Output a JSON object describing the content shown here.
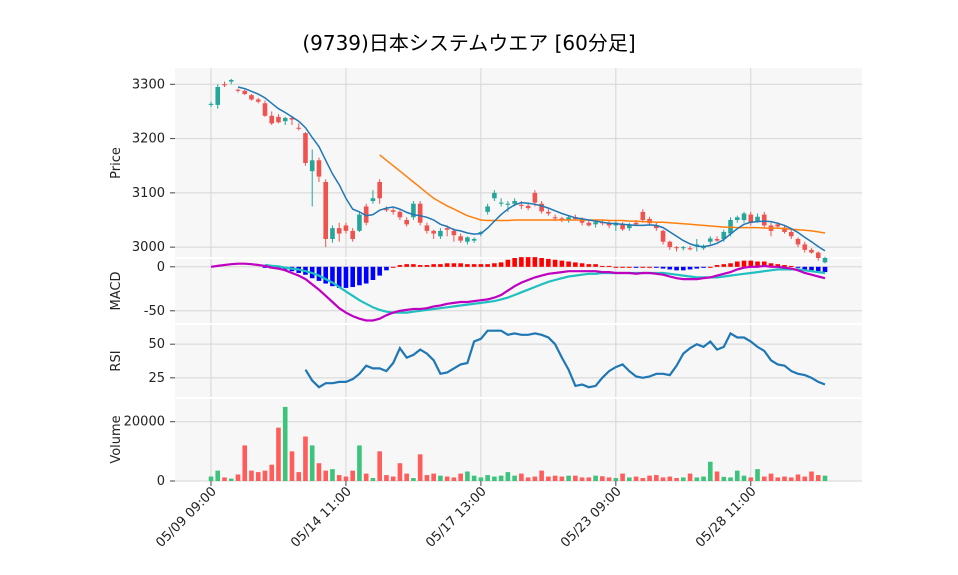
{
  "chart_data": {
    "type": "candlestick",
    "title": "(9739)日本システムウエア  [60分足]",
    "colors": {
      "up": "#26a69a",
      "down": "#ef5350",
      "ma_short": "#1f77b4",
      "ma_long": "#ff7f0e",
      "macd": "#c000c0",
      "signal": "#20c0c0",
      "hist_pos": "#ff0000",
      "hist_neg": "#0000ff",
      "rsi": "#1f77b4",
      "vol_up": "#3cc47c",
      "vol_down": "#ff5c5c"
    },
    "x_tick_labels": [
      "05/09 09:00",
      "05/14 11:00",
      "05/17 13:00",
      "05/23 09:00",
      "05/28 11:00"
    ],
    "x_tick_index": [
      0,
      20,
      40,
      60,
      80
    ],
    "panels": {
      "price": {
        "ylabel": "Price",
        "ylim": [
          2980,
          3330
        ],
        "ticks": [
          3000,
          3100,
          3200,
          3300
        ]
      },
      "macd": {
        "ylabel": "MACD",
        "ylim": [
          -65,
          10
        ],
        "ticks": [
          0,
          -50
        ]
      },
      "rsi": {
        "ylabel": "RSI",
        "ylim": [
          10,
          65
        ],
        "ticks": [
          25,
          50
        ]
      },
      "volume": {
        "ylabel": "Volume",
        "ylim": [
          0,
          28000
        ],
        "ticks": [
          0,
          20000
        ]
      }
    },
    "ohlc": [
      [
        3262,
        3268,
        3258,
        3264
      ],
      [
        3262,
        3300,
        3255,
        3295
      ],
      [
        3300,
        3305,
        3295,
        3298
      ],
      [
        3305,
        3310,
        3300,
        3308
      ],
      [
        3290,
        3292,
        3285,
        3288
      ],
      [
        3288,
        3290,
        3280,
        3282
      ],
      [
        3280,
        3282,
        3270,
        3272
      ],
      [
        3272,
        3275,
        3265,
        3268
      ],
      [
        3265,
        3270,
        3240,
        3242
      ],
      [
        3242,
        3250,
        3225,
        3228
      ],
      [
        3240,
        3245,
        3228,
        3230
      ],
      [
        3232,
        3240,
        3225,
        3238
      ],
      [
        3238,
        3242,
        3225,
        3235
      ],
      [
        3220,
        3228,
        3215,
        3218
      ],
      [
        3210,
        3212,
        3150,
        3155
      ],
      [
        3140,
        3180,
        3075,
        3160
      ],
      [
        3160,
        3165,
        3120,
        3130
      ],
      [
        3120,
        3125,
        3000,
        3015
      ],
      [
        3015,
        3040,
        3008,
        3035
      ],
      [
        3035,
        3045,
        3010,
        3025
      ],
      [
        3040,
        3045,
        3025,
        3030
      ],
      [
        3030,
        3035,
        3010,
        3015
      ],
      [
        3030,
        3065,
        3028,
        3060
      ],
      [
        3075,
        3080,
        3040,
        3045
      ],
      [
        3085,
        3105,
        3080,
        3090
      ],
      [
        3120,
        3125,
        3080,
        3090
      ],
      [
        3070,
        3075,
        3065,
        3068
      ],
      [
        3068,
        3072,
        3060,
        3065
      ],
      [
        3065,
        3068,
        3050,
        3055
      ],
      [
        3050,
        3055,
        3038,
        3042
      ],
      [
        3055,
        3085,
        3050,
        3080
      ],
      [
        3080,
        3085,
        3040,
        3045
      ],
      [
        3040,
        3045,
        3025,
        3030
      ],
      [
        3030,
        3032,
        3015,
        3025
      ],
      [
        3020,
        3035,
        3015,
        3030
      ],
      [
        3035,
        3040,
        3020,
        3032
      ],
      [
        3030,
        3035,
        3010,
        3022
      ],
      [
        3020,
        3025,
        3008,
        3012
      ],
      [
        3010,
        3020,
        3005,
        3018
      ],
      [
        3012,
        3018,
        3008,
        3015
      ],
      [
        3025,
        3030,
        3020,
        3028
      ],
      [
        3065,
        3080,
        3060,
        3075
      ],
      [
        3090,
        3105,
        3085,
        3100
      ],
      [
        3080,
        3090,
        3075,
        3082
      ],
      [
        3078,
        3085,
        3065,
        3080
      ],
      [
        3080,
        3090,
        3075,
        3085
      ],
      [
        3078,
        3085,
        3070,
        3076
      ],
      [
        3076,
        3080,
        3068,
        3072
      ],
      [
        3100,
        3105,
        3075,
        3082
      ],
      [
        3080,
        3085,
        3062,
        3066
      ],
      [
        3065,
        3070,
        3058,
        3062
      ],
      [
        3055,
        3060,
        3048,
        3053
      ],
      [
        3053,
        3056,
        3046,
        3050
      ],
      [
        3050,
        3058,
        3045,
        3055
      ],
      [
        3055,
        3060,
        3050,
        3052
      ],
      [
        3052,
        3055,
        3040,
        3045
      ],
      [
        3045,
        3050,
        3038,
        3040
      ],
      [
        3042,
        3048,
        3036,
        3046
      ],
      [
        3046,
        3050,
        3040,
        3044
      ],
      [
        3044,
        3048,
        3035,
        3040
      ],
      [
        3040,
        3048,
        3030,
        3045
      ],
      [
        3042,
        3046,
        3030,
        3033
      ],
      [
        3035,
        3045,
        3030,
        3041
      ],
      [
        3045,
        3050,
        3040,
        3042
      ],
      [
        3065,
        3070,
        3045,
        3050
      ],
      [
        3052,
        3056,
        3040,
        3044
      ],
      [
        3040,
        3045,
        3030,
        3035
      ],
      [
        3030,
        3032,
        3005,
        3010
      ],
      [
        3010,
        3012,
        2995,
        3000
      ],
      [
        3000,
        3002,
        2992,
        2998
      ],
      [
        2998,
        3002,
        2994,
        3000
      ],
      [
        2998,
        3002,
        2994,
        2996
      ],
      [
        3005,
        3015,
        2992,
        3005
      ],
      [
        2998,
        3005,
        2995,
        3002
      ],
      [
        3010,
        3020,
        3005,
        3016
      ],
      [
        3015,
        3020,
        3010,
        3012
      ],
      [
        3015,
        3032,
        3010,
        3028
      ],
      [
        3025,
        3055,
        3020,
        3050
      ],
      [
        3050,
        3058,
        3045,
        3055
      ],
      [
        3050,
        3065,
        3045,
        3062
      ],
      [
        3060,
        3065,
        3040,
        3045
      ],
      [
        3048,
        3062,
        3045,
        3056
      ],
      [
        3060,
        3065,
        3035,
        3040
      ],
      [
        3040,
        3045,
        3020,
        3030
      ],
      [
        3042,
        3046,
        3035,
        3038
      ],
      [
        3036,
        3040,
        3025,
        3028
      ],
      [
        3028,
        3032,
        3015,
        3020
      ],
      [
        3015,
        3018,
        3000,
        3005
      ],
      [
        3005,
        3010,
        2990,
        2995
      ],
      [
        2995,
        2998,
        2988,
        2990
      ],
      [
        2990,
        2992,
        2975,
        2980
      ],
      [
        2972,
        2982,
        2970,
        2980
      ]
    ],
    "ma_short": [
      null,
      null,
      null,
      null,
      3295,
      3292,
      3287,
      3282,
      3275,
      3265,
      3255,
      3248,
      3240,
      3232,
      3220,
      3202,
      3185,
      3160,
      3135,
      3115,
      3090,
      3070,
      3065,
      3058,
      3060,
      3068,
      3072,
      3074,
      3070,
      3064,
      3060,
      3058,
      3055,
      3050,
      3042,
      3038,
      3032,
      3030,
      3026,
      3024,
      3025,
      3035,
      3048,
      3060,
      3070,
      3078,
      3082,
      3081,
      3079,
      3076,
      3072,
      3067,
      3062,
      3058,
      3054,
      3052,
      3050,
      3048,
      3046,
      3044,
      3043,
      3042,
      3041,
      3040,
      3040,
      3041,
      3040,
      3036,
      3028,
      3020,
      3012,
      3006,
      3002,
      3001,
      3003,
      3007,
      3014,
      3024,
      3034,
      3042,
      3046,
      3047,
      3048,
      3047,
      3044,
      3040,
      3034,
      3027,
      3018,
      3010,
      3001,
      2993
    ],
    "ma_long": [
      null,
      null,
      null,
      null,
      null,
      null,
      null,
      null,
      null,
      null,
      null,
      null,
      null,
      null,
      null,
      null,
      null,
      null,
      null,
      null,
      null,
      null,
      null,
      null,
      null,
      3170,
      3160,
      3150,
      3140,
      3130,
      3120,
      3110,
      3100,
      3090,
      3083,
      3076,
      3070,
      3064,
      3058,
      3054,
      3050,
      3049,
      3049,
      3049,
      3049,
      3050,
      3050,
      3050,
      3050,
      3050,
      3050,
      3050,
      3050,
      3050,
      3050,
      3050,
      3050,
      3050,
      3050,
      3049,
      3049,
      3049,
      3048,
      3048,
      3047,
      3047,
      3046,
      3046,
      3045,
      3044,
      3043,
      3042,
      3041,
      3040,
      3039,
      3038,
      3037,
      3037,
      3036,
      3036,
      3036,
      3036,
      3035,
      3035,
      3035,
      3034,
      3033,
      3032,
      3031,
      3030,
      3028,
      3026
    ],
    "macd": [
      0,
      1,
      2,
      3,
      3.5,
      3.5,
      3,
      2,
      1,
      -1,
      -2,
      -4,
      -7,
      -10,
      -14,
      -20,
      -26,
      -33,
      -40,
      -47,
      -52,
      -56,
      -59,
      -61,
      -61,
      -59,
      -55,
      -52,
      -50,
      -49,
      -48,
      -48,
      -47,
      -45,
      -44,
      -42,
      -41,
      -40,
      -40,
      -39,
      -38,
      -37,
      -35,
      -32,
      -27,
      -22,
      -18,
      -15,
      -12,
      -10,
      -8,
      -7,
      -6,
      -5,
      -5,
      -5,
      -5,
      -5,
      -6,
      -6,
      -7,
      -7,
      -7,
      -8,
      -7,
      -7,
      -8,
      -9,
      -11,
      -13,
      -14,
      -14,
      -14,
      -13,
      -12,
      -10,
      -8,
      -6,
      -3,
      -1,
      0,
      0,
      1,
      0,
      0,
      -1,
      -2,
      -4,
      -7,
      -9,
      -11,
      -13
    ],
    "signal": [
      null,
      null,
      null,
      null,
      null,
      null,
      null,
      null,
      2,
      1,
      0.5,
      -1,
      -2,
      -3,
      -5,
      -7,
      -10,
      -14,
      -18,
      -23,
      -28,
      -33,
      -38,
      -42,
      -46,
      -49,
      -51,
      -52,
      -52,
      -52,
      -51,
      -50,
      -49,
      -48,
      -47,
      -46,
      -45,
      -44,
      -43,
      -42,
      -41,
      -40,
      -39,
      -37,
      -35,
      -32,
      -29,
      -26,
      -23,
      -20,
      -17,
      -15,
      -13,
      -11,
      -10,
      -9,
      -8,
      -8,
      -7,
      -7,
      -7,
      -7,
      -7,
      -7,
      -7,
      -7,
      -7,
      -7,
      -8,
      -9,
      -10,
      -11,
      -12,
      -12,
      -12,
      -12,
      -11,
      -10,
      -9,
      -8,
      -7,
      -6,
      -5,
      -4,
      -3,
      -3,
      -3,
      -3,
      -4,
      -5,
      -6,
      -7
    ],
    "rsi": [
      null,
      null,
      null,
      null,
      null,
      null,
      null,
      null,
      null,
      null,
      null,
      null,
      null,
      null,
      31,
      23,
      18,
      21,
      21,
      22,
      22,
      24,
      28,
      34,
      32,
      32,
      30,
      36,
      47,
      40,
      42,
      46,
      43,
      38,
      28,
      29,
      32,
      35,
      36,
      52,
      54,
      60,
      60,
      60,
      57,
      58,
      57,
      57,
      58,
      57,
      55,
      50,
      40,
      31,
      19,
      20,
      18,
      19,
      25,
      30,
      33,
      35,
      30,
      26,
      25,
      26,
      28,
      28,
      27,
      34,
      43,
      47,
      50,
      48,
      52,
      46,
      48,
      58,
      55,
      55,
      52,
      48,
      45,
      38,
      35,
      34,
      30,
      28,
      27,
      25,
      22,
      20
    ],
    "volume": [
      1500,
      3500,
      1200,
      800,
      2200,
      12000,
      3500,
      3000,
      3500,
      5500,
      18000,
      25000,
      10000,
      3000,
      15000,
      12000,
      6000,
      3500,
      4000,
      2000,
      1500,
      3500,
      12000,
      2500,
      1000,
      10000,
      2000,
      1500,
      6000,
      2500,
      1000,
      9000,
      2000,
      2500,
      1800,
      1500,
      1200,
      2500,
      3200,
      1800,
      1200,
      2000,
      1500,
      1800,
      3000,
      1800,
      2500,
      1200,
      1500,
      3500,
      1500,
      1800,
      1500,
      1800,
      1800,
      1200,
      1200,
      1800,
      1600,
      1200,
      1000,
      2500,
      1200,
      1500,
      1000,
      1800,
      2000,
      1200,
      1500,
      1000,
      1200,
      2500,
      1200,
      1500,
      6500,
      3200,
      1400,
      1200,
      3500,
      1800,
      1200,
      4000,
      1500,
      2500,
      1200,
      1500,
      1200,
      2200,
      1500,
      3200,
      2000,
      1800
    ]
  }
}
